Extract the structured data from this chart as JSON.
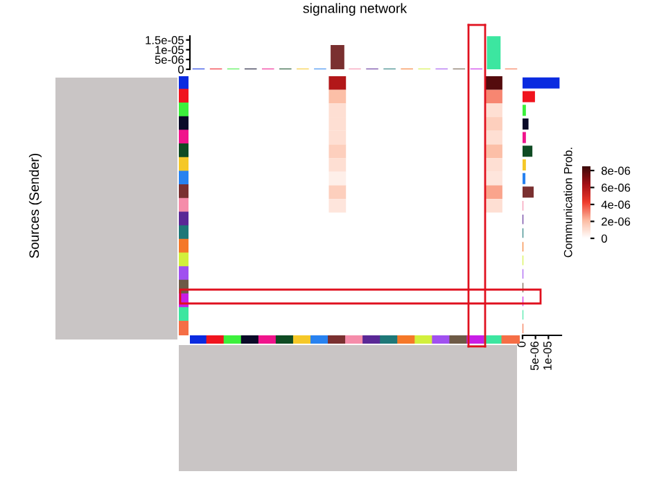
{
  "chart_data": [
    {
      "type": "bar",
      "title": "signaling network",
      "categories": [
        null,
        null,
        null,
        null,
        null,
        null,
        null,
        null,
        null,
        null,
        null,
        null,
        null,
        null,
        null,
        null,
        null,
        null,
        null
      ],
      "values": [
        0,
        0,
        0,
        0,
        0,
        0,
        0,
        0,
        1.2e-05,
        0,
        0,
        0,
        0,
        0,
        0,
        0,
        0,
        1.65e-05,
        0
      ],
      "colors": [
        "#0a2be0",
        "#f0141e",
        "#3cf03c",
        "#0a0a28",
        "#f0148c",
        "#0f4b23",
        "#f5c828",
        "#2882f0",
        "#7a3030",
        "#f58caa",
        "#5a2896",
        "#1e7878",
        "#f57828",
        "#d2f03c",
        "#a050f0",
        "#6e5a46",
        "#c81ee6",
        "#3ce6a0",
        "#f56e46"
      ],
      "ylim": [
        0,
        1.7e-05
      ],
      "yticks": [
        0,
        {
          "value": 5e-06,
          "label": "5e-06"
        },
        {
          "value": 1e-05,
          "label": "1e-05"
        },
        {
          "value": 1.5e-05,
          "label": "1.5e-05"
        }
      ]
    },
    {
      "type": "heatmap",
      "ylabel": "Sources (Sender)",
      "clabel": "Communication Prob.",
      "categories": [
        null,
        null,
        null,
        null,
        null,
        null,
        null,
        null,
        null,
        null,
        null,
        null,
        null,
        null,
        null,
        null,
        null,
        null,
        null
      ],
      "y_categories": [
        null,
        null,
        null,
        null,
        null,
        null,
        null,
        null,
        null,
        null,
        null,
        null,
        null,
        null,
        null,
        null,
        null,
        null,
        null
      ],
      "cells": [
        [
          0,
          0,
          0,
          0,
          0,
          0,
          0,
          0,
          6e-06,
          0,
          0,
          0,
          0,
          0,
          0,
          0,
          0,
          8e-06,
          0
        ],
        [
          0,
          0,
          0,
          0,
          0,
          0,
          0,
          0,
          2e-06,
          0,
          0,
          0,
          0,
          0,
          0,
          0,
          0,
          3e-06,
          0
        ],
        [
          0,
          0,
          0,
          0,
          0,
          0,
          0,
          0,
          1e-06,
          0,
          0,
          0,
          0,
          0,
          0,
          0,
          0,
          1e-06,
          0
        ],
        [
          0,
          0,
          0,
          0,
          0,
          0,
          0,
          0,
          1e-06,
          0,
          0,
          0,
          0,
          0,
          0,
          0,
          0,
          1.5e-06,
          0
        ],
        [
          0,
          0,
          0,
          0,
          0,
          0,
          0,
          0,
          1e-06,
          0,
          0,
          0,
          0,
          0,
          0,
          0,
          0,
          1e-06,
          0
        ],
        [
          0,
          0,
          0,
          0,
          0,
          0,
          0,
          0,
          1.5e-06,
          0,
          0,
          0,
          0,
          0,
          0,
          0,
          0,
          2e-06,
          0
        ],
        [
          0,
          0,
          0,
          0,
          0,
          0,
          0,
          0,
          1e-06,
          0,
          0,
          0,
          0,
          0,
          0,
          0,
          0,
          1e-06,
          0
        ],
        [
          0,
          0,
          0,
          0,
          0,
          0,
          0,
          0,
          5e-07,
          0,
          0,
          0,
          0,
          0,
          0,
          0,
          0,
          8e-07,
          0
        ],
        [
          0,
          0,
          0,
          0,
          0,
          0,
          0,
          0,
          1.5e-06,
          0,
          0,
          0,
          0,
          0,
          0,
          0,
          0,
          2.5e-06,
          0
        ],
        [
          0,
          0,
          0,
          0,
          0,
          0,
          0,
          0,
          8e-07,
          0,
          0,
          0,
          0,
          0,
          0,
          0,
          0,
          1e-06,
          0
        ],
        [
          0,
          0,
          0,
          0,
          0,
          0,
          0,
          0,
          0,
          0,
          0,
          0,
          0,
          0,
          0,
          0,
          0,
          0,
          0
        ],
        [
          0,
          0,
          0,
          0,
          0,
          0,
          0,
          0,
          0,
          0,
          0,
          0,
          0,
          0,
          0,
          0,
          0,
          0,
          0
        ],
        [
          0,
          0,
          0,
          0,
          0,
          0,
          0,
          0,
          0,
          0,
          0,
          0,
          0,
          0,
          0,
          0,
          0,
          0,
          0
        ],
        [
          0,
          0,
          0,
          0,
          0,
          0,
          0,
          0,
          0,
          0,
          0,
          0,
          0,
          0,
          0,
          0,
          0,
          0,
          0
        ],
        [
          0,
          0,
          0,
          0,
          0,
          0,
          0,
          0,
          0,
          0,
          0,
          0,
          0,
          0,
          0,
          0,
          0,
          0,
          0
        ],
        [
          0,
          0,
          0,
          0,
          0,
          0,
          0,
          0,
          0,
          0,
          0,
          0,
          0,
          0,
          0,
          0,
          0,
          0,
          0
        ],
        [
          0,
          0,
          0,
          0,
          0,
          0,
          0,
          0,
          0,
          0,
          0,
          0,
          0,
          0,
          0,
          0,
          0,
          0,
          0
        ],
        [
          0,
          0,
          0,
          0,
          0,
          0,
          0,
          0,
          0,
          0,
          0,
          0,
          0,
          0,
          0,
          0,
          0,
          0,
          0
        ],
        [
          0,
          0,
          0,
          0,
          0,
          0,
          0,
          0,
          0,
          0,
          0,
          0,
          0,
          0,
          0,
          0,
          0,
          0,
          0
        ]
      ],
      "clim": [
        0,
        8.5e-06
      ],
      "cticks": [
        0,
        {
          "value": 2e-06,
          "label": "2e-06"
        },
        {
          "value": 4e-06,
          "label": "4e-06"
        },
        {
          "value": 6e-06,
          "label": "6e-06"
        },
        {
          "value": 8e-06,
          "label": "8e-06"
        }
      ]
    },
    {
      "type": "bar",
      "orientation": "horizontal",
      "categories": [
        null,
        null,
        null,
        null,
        null,
        null,
        null,
        null,
        null,
        null,
        null,
        null,
        null,
        null,
        null,
        null,
        null,
        null,
        null
      ],
      "values": [
        1.4e-05,
        4.5e-06,
        1e-06,
        2e-06,
        1e-06,
        3.5e-06,
        1e-06,
        8e-07,
        4e-06,
        0,
        0,
        0,
        0,
        0,
        0,
        0,
        0,
        0,
        0
      ],
      "colors": [
        "#0a2be0",
        "#f0141e",
        "#3cf03c",
        "#0a0a28",
        "#f0148c",
        "#0f4b23",
        "#f5c828",
        "#2882f0",
        "#7a3030",
        "#f58caa",
        "#5a2896",
        "#1e7878",
        "#f57828",
        "#d2f03c",
        "#a050f0",
        "#6e5a46",
        "#c81ee6",
        "#3ce6a0",
        "#f56e46"
      ],
      "xlim": [
        0,
        1.5e-05
      ],
      "xticks": [
        0,
        {
          "value": 5e-06,
          "label": "5e-06"
        },
        {
          "value": 1e-05,
          "label": "1e-05"
        }
      ]
    }
  ]
}
